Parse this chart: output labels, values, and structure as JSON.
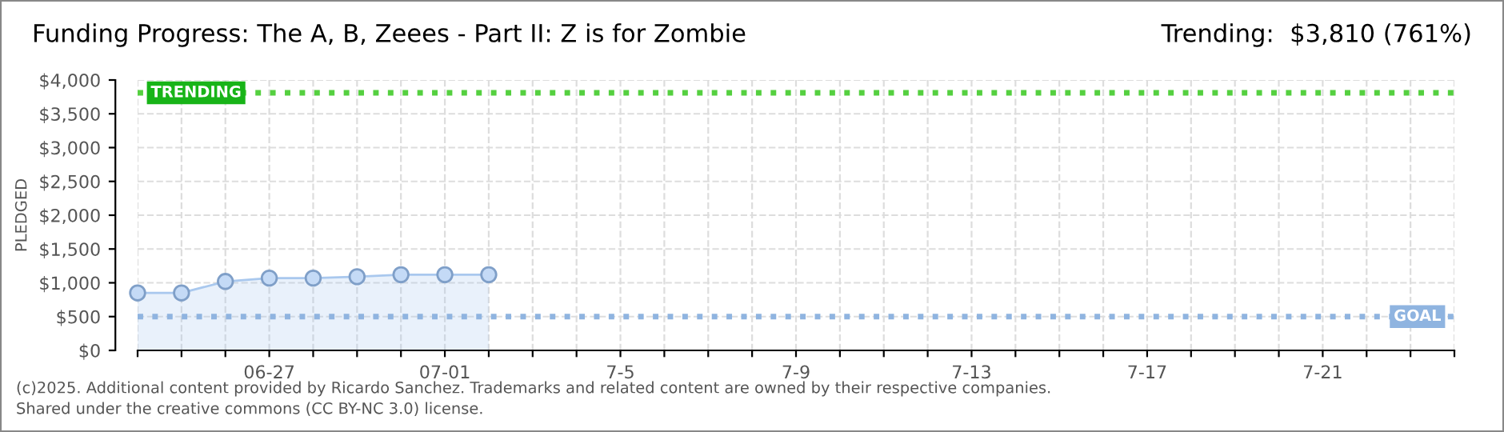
{
  "chart_data": {
    "type": "area",
    "title": "Funding Progress: The A, B, Zeees - Part II: Z is for Zombie",
    "subtitle": "Trending:  $3,810 (761%)",
    "ylabel": "PLEDGED",
    "x": [
      "2025-06-24",
      "2025-06-25",
      "2025-06-26",
      "2025-06-27",
      "2025-06-28",
      "2025-06-29",
      "2025-06-30",
      "2025-07-01",
      "2025-07-02"
    ],
    "series": [
      {
        "color": "#a9c8ee",
        "values": [
          850,
          850,
          1020,
          1070,
          1070,
          1090,
          1120,
          1120,
          1120
        ]
      }
    ],
    "marker": "circle",
    "grid": true,
    "xlim": [
      "2025-06-24",
      "2025-07-24"
    ],
    "xticks": [
      {
        "value": "2025-06-24",
        "label": null
      },
      {
        "value": "2025-06-25",
        "label": null
      },
      {
        "value": "2025-06-26",
        "label": null
      },
      {
        "value": "2025-06-27",
        "label": "06-27"
      },
      {
        "value": "2025-06-28",
        "label": null
      },
      {
        "value": "2025-06-29",
        "label": null
      },
      {
        "value": "2025-06-30",
        "label": null
      },
      {
        "value": "2025-07-01",
        "label": "07-01"
      },
      {
        "value": "2025-07-02",
        "label": null
      },
      {
        "value": "2025-07-03",
        "label": null
      },
      {
        "value": "2025-07-04",
        "label": null
      },
      {
        "value": "2025-07-05",
        "label": "7-5"
      },
      {
        "value": "2025-07-06",
        "label": null
      },
      {
        "value": "2025-07-07",
        "label": null
      },
      {
        "value": "2025-07-08",
        "label": null
      },
      {
        "value": "2025-07-09",
        "label": "7-9"
      },
      {
        "value": "2025-07-10",
        "label": null
      },
      {
        "value": "2025-07-11",
        "label": null
      },
      {
        "value": "2025-07-12",
        "label": null
      },
      {
        "value": "2025-07-13",
        "label": "7-13"
      },
      {
        "value": "2025-07-14",
        "label": null
      },
      {
        "value": "2025-07-15",
        "label": null
      },
      {
        "value": "2025-07-16",
        "label": null
      },
      {
        "value": "2025-07-17",
        "label": "7-17"
      },
      {
        "value": "2025-07-18",
        "label": null
      },
      {
        "value": "2025-07-19",
        "label": null
      },
      {
        "value": "2025-07-20",
        "label": null
      },
      {
        "value": "2025-07-21",
        "label": "7-21"
      },
      {
        "value": "2025-07-22",
        "label": null
      },
      {
        "value": "2025-07-23",
        "label": null
      },
      {
        "value": "2025-07-24",
        "label": null
      }
    ],
    "ylim": [
      0,
      4000
    ],
    "yticks": [
      {
        "value": 0,
        "label": "$0"
      },
      {
        "value": 500,
        "label": "$500"
      },
      {
        "value": 1000,
        "label": "$1,000"
      },
      {
        "value": 1500,
        "label": "$1,500"
      },
      {
        "value": 2000,
        "label": "$2,000"
      },
      {
        "value": 2500,
        "label": "$2,500"
      },
      {
        "value": 3000,
        "label": "$3,000"
      },
      {
        "value": 3500,
        "label": "$3,500"
      },
      {
        "value": 4000,
        "label": "$4,000"
      }
    ],
    "ref_lines": [
      {
        "axis": "y",
        "value": 3810,
        "label": "TRENDING",
        "color": "#55d040",
        "line_style": "dotted"
      },
      {
        "axis": "y",
        "value": 500,
        "label": "GOAL",
        "color": "#8fb4e0",
        "line_style": "dotted"
      }
    ],
    "annotations": [
      "(c)2025. Additional content provided by Ricardo Sanchez. Trademarks and related content are owned by their respective companies.",
      "Shared under the creative commons (CC BY-NC 3.0) license."
    ]
  }
}
